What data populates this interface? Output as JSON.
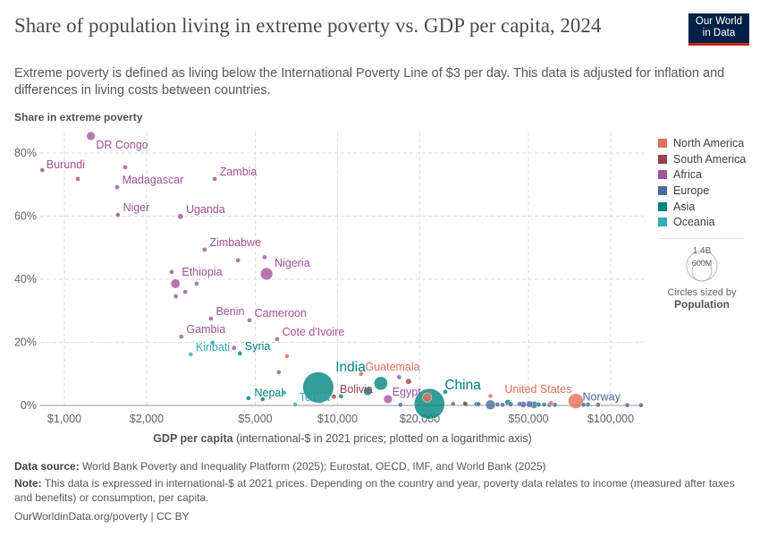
{
  "title": "Share of population living in extreme poverty vs. GDP per capita, 2024",
  "subtitle": "Extreme poverty is defined as living below the International Poverty Line of $3 per day. This data is adjusted for inflation and differences in living costs between countries.",
  "logo": {
    "line1": "Our World",
    "line2": "in Data",
    "colors": {
      "background": "#002147",
      "accent": "#ce261e"
    }
  },
  "legend": {
    "items": [
      {
        "label": "North America",
        "color": "#e56e5a"
      },
      {
        "label": "South America",
        "color": "#9a3f4f"
      },
      {
        "label": "Africa",
        "color": "#a2559c"
      },
      {
        "label": "Europe",
        "color": "#4c6a9c"
      },
      {
        "label": "Asia",
        "color": "#00847e"
      },
      {
        "label": "Oceania",
        "color": "#38aaba"
      }
    ],
    "size_large": "1.4B",
    "size_small": "600M",
    "size_caption": "Circles sized by",
    "size_variable": "Population"
  },
  "footer": {
    "source_label": "Data source:",
    "source": "World Bank Poverty and Inequality Platform (2025); Eurostat, OECD, IMF, and World Bank (2025)",
    "note_label": "Note:",
    "note": "This data is expressed in international-$ at 2021 prices. Depending on the country and year, poverty data relates to income (measured after taxes and benefits) or consumption, per capita.",
    "url": "OurWorldinData.org/poverty | CC BY"
  },
  "chart_data": {
    "type": "scatter",
    "title": "Share of population living in extreme poverty vs. GDP per capita, 2024",
    "ylabel": "Share in extreme poverty",
    "xlabel": "GDP per capita",
    "xlabel_suffix": "(international-$ in 2021 prices; plotted on a logarithmic axis)",
    "x_scale": "log",
    "xlim": [
      820,
      132000
    ],
    "ylim": [
      0,
      85
    ],
    "x_ticks": [
      {
        "v": 1000,
        "label": "$1,000"
      },
      {
        "v": 2000,
        "label": "$2,000"
      },
      {
        "v": 5000,
        "label": "$5,000"
      },
      {
        "v": 10000,
        "label": "$10,000"
      },
      {
        "v": 20000,
        "label": "$20,000"
      },
      {
        "v": 50000,
        "label": "$50,000"
      },
      {
        "v": 100000,
        "label": "$100,000"
      }
    ],
    "y_ticks": [
      {
        "v": 0,
        "label": "0%"
      },
      {
        "v": 20,
        "label": "20%"
      },
      {
        "v": 40,
        "label": "40%"
      },
      {
        "v": 60,
        "label": "60%"
      },
      {
        "v": 80,
        "label": "80%"
      }
    ],
    "grid": true,
    "legend_position": "right",
    "size_variable": "Population",
    "points": [
      {
        "entity": "DR Congo",
        "region": "Africa",
        "gdp": 1250,
        "poverty": 85.4,
        "pop": 110
      },
      {
        "entity": "Burundi",
        "region": "Africa",
        "gdp": 830,
        "poverty": 74.6,
        "pop": 14
      },
      {
        "region": "Africa",
        "gdp": 1120,
        "poverty": 71.8,
        "pop": 20
      },
      {
        "entity": "Madagascar",
        "region": "Africa",
        "gdp": 1560,
        "poverty": 69.2,
        "pop": 31
      },
      {
        "region": "Africa",
        "gdp": 1670,
        "poverty": 75.5,
        "pop": 20
      },
      {
        "entity": "Niger",
        "region": "Africa",
        "gdp": 1570,
        "poverty": 60.4,
        "pop": 27
      },
      {
        "entity": "Uganda",
        "region": "Africa",
        "gdp": 2660,
        "poverty": 59.9,
        "pop": 48
      },
      {
        "entity": "Zambia",
        "region": "Africa",
        "gdp": 3550,
        "poverty": 71.8,
        "pop": 21
      },
      {
        "entity": "Zimbabwe",
        "region": "Africa",
        "gdp": 3260,
        "poverty": 49.4,
        "pop": 16
      },
      {
        "region": "Africa",
        "gdp": 4320,
        "poverty": 46,
        "pop": 10
      },
      {
        "region": "Africa",
        "gdp": 5410,
        "poverty": 47,
        "pop": 30
      },
      {
        "entity": "Nigeria",
        "region": "Africa",
        "gdp": 5500,
        "poverty": 41.7,
        "pop": 230
      },
      {
        "entity": "Ethiopia",
        "region": "Africa",
        "gdp": 2550,
        "poverty": 38.6,
        "pop": 130
      },
      {
        "region": "Africa",
        "gdp": 2470,
        "poverty": 42.3,
        "pop": 20
      },
      {
        "region": "Africa",
        "gdp": 2770,
        "poverty": 36,
        "pop": 20
      },
      {
        "region": "Africa",
        "gdp": 3050,
        "poverty": 38.6,
        "pop": 10
      },
      {
        "region": "Africa",
        "gdp": 2560,
        "poverty": 34.6,
        "pop": 15
      },
      {
        "entity": "Benin",
        "region": "Africa",
        "gdp": 3440,
        "poverty": 27.5,
        "pop": 14
      },
      {
        "entity": "Gambia",
        "region": "Africa",
        "gdp": 2680,
        "poverty": 21.8,
        "pop": 3
      },
      {
        "entity": "Cameroon",
        "region": "Africa",
        "gdp": 4760,
        "poverty": 27,
        "pop": 29
      },
      {
        "entity": "Cote d'Ivoire",
        "region": "Africa",
        "gdp": 6010,
        "poverty": 21,
        "pop": 32
      },
      {
        "region": "Africa",
        "gdp": 4180,
        "poverty": 18.2,
        "pop": 12
      },
      {
        "region": "Africa",
        "gdp": 6100,
        "poverty": 10.5,
        "pop": 10
      },
      {
        "entity": "Syria",
        "region": "Asia",
        "gdp": 4390,
        "poverty": 16.5,
        "pop": 24
      },
      {
        "entity": "Kiribati",
        "region": "Oceania",
        "gdp": 2900,
        "poverty": 16.2,
        "pop": 0.1
      },
      {
        "region": "Oceania",
        "gdp": 3490,
        "poverty": 19.9,
        "pop": 0.3
      },
      {
        "region": "North America",
        "gdp": 6530,
        "poverty": 15.6,
        "pop": 12
      },
      {
        "entity": "India",
        "region": "Asia",
        "gdp": 8500,
        "poverty": 5.7,
        "pop": 1450
      },
      {
        "entity": "Nepal",
        "region": "Asia",
        "gdp": 4720,
        "poverty": 2.3,
        "pop": 30
      },
      {
        "region": "Asia",
        "gdp": 5320,
        "poverty": 2,
        "pop": 5
      },
      {
        "entity": "Tonga",
        "region": "Oceania",
        "gdp": 7000,
        "poverty": 0.3,
        "pop": 0.1
      },
      {
        "region": "Oceania",
        "gdp": 6380,
        "poverty": 4,
        "pop": 0.5
      },
      {
        "entity": "Bolivia",
        "region": "South America",
        "gdp": 9700,
        "poverty": 2.8,
        "pop": 12
      },
      {
        "region": "Asia",
        "gdp": 10300,
        "poverty": 2.9,
        "pop": 30
      },
      {
        "entity": "Guatemala",
        "region": "North America",
        "gdp": 12200,
        "poverty": 10,
        "pop": 18
      },
      {
        "region": "Asia",
        "gdp": 12900,
        "poverty": 4.5,
        "pop": 110
      },
      {
        "region": "Asia",
        "gdp": 14400,
        "poverty": 7,
        "pop": 280
      },
      {
        "entity": "Egypt",
        "region": "Africa",
        "gdp": 15300,
        "poverty": 2,
        "pop": 115
      },
      {
        "region": "South America",
        "gdp": 18200,
        "poverty": 7.6,
        "pop": 50
      },
      {
        "region": "Africa",
        "gdp": 16800,
        "poverty": 9,
        "pop": 5
      },
      {
        "entity": "China",
        "region": "Asia",
        "gdp": 21700,
        "poverty": 0.5,
        "pop": 1410
      },
      {
        "region": "North America",
        "gdp": 21300,
        "poverty": 2.5,
        "pop": 130
      },
      {
        "region": "Asia",
        "gdp": 24800,
        "poverty": 4.3,
        "pop": 5
      },
      {
        "region": "North America",
        "gdp": 36300,
        "poverty": 3,
        "pop": 3
      },
      {
        "region": "Europe",
        "gdp": 17000,
        "poverty": 0.2,
        "pop": 10
      },
      {
        "region": "Europe",
        "gdp": 26500,
        "poverty": 0.5,
        "pop": 8
      },
      {
        "region": "South America",
        "gdp": 29300,
        "poverty": 0.6,
        "pop": 19
      },
      {
        "region": "Asia",
        "gdp": 29500,
        "poverty": 0.3,
        "pop": 20
      },
      {
        "region": "Asia",
        "gdp": 32300,
        "poverty": 0.4,
        "pop": 35
      },
      {
        "region": "Europe",
        "gdp": 32800,
        "poverty": 0.4,
        "pop": 20
      },
      {
        "region": "Europe",
        "gdp": 36300,
        "poverty": 0.2,
        "pop": 145
      },
      {
        "region": "Europe",
        "gdp": 38500,
        "poverty": 0.3,
        "pop": 10
      },
      {
        "region": "Europe",
        "gdp": 40200,
        "poverty": 0.2,
        "pop": 10
      },
      {
        "region": "Asia",
        "gdp": 42000,
        "poverty": 1.0,
        "pop": 50
      },
      {
        "region": "Europe",
        "gdp": 43000,
        "poverty": 0.4,
        "pop": 40
      },
      {
        "region": "Europe",
        "gdp": 46400,
        "poverty": 0.5,
        "pop": 20
      },
      {
        "region": "Europe",
        "gdp": 47800,
        "poverty": 0.3,
        "pop": 60
      },
      {
        "region": "Europe",
        "gdp": 50400,
        "poverty": 0.4,
        "pop": 68
      },
      {
        "region": "Europe",
        "gdp": 52400,
        "poverty": 0.2,
        "pop": 84
      },
      {
        "region": "Asia",
        "gdp": 54500,
        "poverty": 0.3,
        "pop": 15
      },
      {
        "region": "Europe",
        "gdp": 57100,
        "poverty": 0.3,
        "pop": 20
      },
      {
        "region": "Europe",
        "gdp": 59700,
        "poverty": 0.2,
        "pop": 10
      },
      {
        "region": "Europe",
        "gdp": 62500,
        "poverty": 0.2,
        "pop": 9
      },
      {
        "region": "North America",
        "gdp": 60500,
        "poverty": 0.8,
        "pop": 8
      },
      {
        "entity": "United States",
        "region": "North America",
        "gdp": 74500,
        "poverty": 1.4,
        "pop": 340
      },
      {
        "region": "Europe",
        "gdp": 79500,
        "poverty": 0.2,
        "pop": 5
      },
      {
        "region": "Europe",
        "gdp": 82600,
        "poverty": 0.3,
        "pop": 5
      },
      {
        "entity": "Norway",
        "region": "Europe",
        "gdp": 89900,
        "poverty": 0.2,
        "pop": 5.5
      },
      {
        "region": "Europe",
        "gdp": 115000,
        "poverty": 0.1,
        "pop": 5
      },
      {
        "region": "Europe",
        "gdp": 129000,
        "poverty": 0.1,
        "pop": 0.7
      }
    ]
  }
}
